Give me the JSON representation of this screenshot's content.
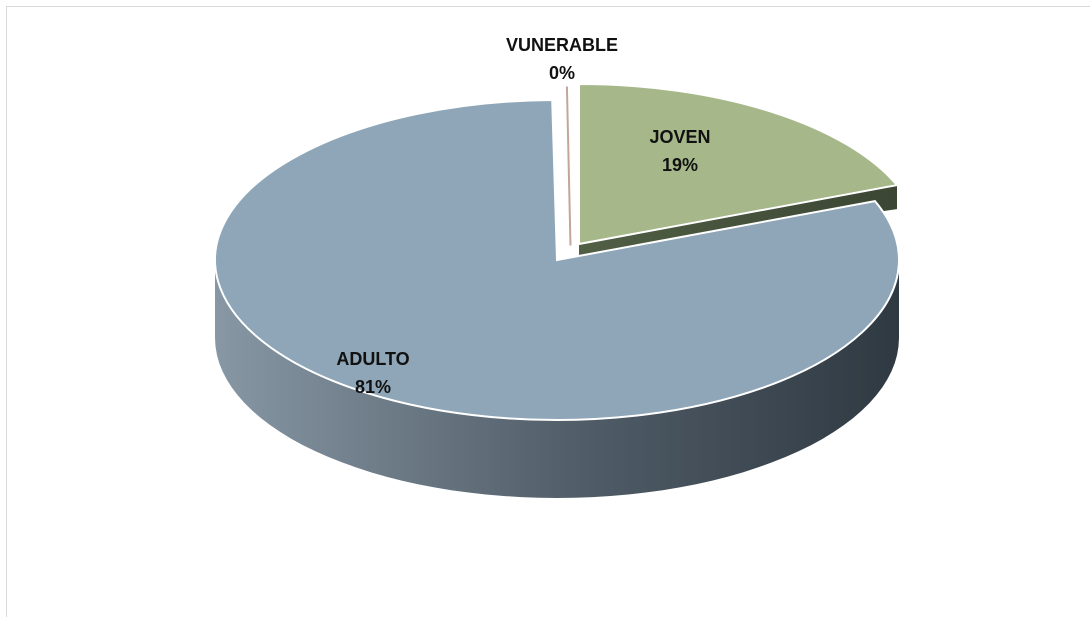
{
  "chart_data": {
    "type": "pie",
    "title": "",
    "categories": [
      "ADULTO",
      "JOVEN",
      "VUNERABLE"
    ],
    "values": [
      81,
      19,
      0
    ],
    "labels": [
      {
        "name": "ADULTO",
        "percent": "81%"
      },
      {
        "name": "JOVEN",
        "percent": "19%"
      },
      {
        "name": "VUNERABLE",
        "percent": "0%"
      }
    ],
    "colors": {
      "ADULTO": "#8ea6b7",
      "JOVEN": "#a6b88a",
      "VUNERABLE": "#c4a59a"
    },
    "style": "3d-exploded",
    "legend": "none"
  }
}
